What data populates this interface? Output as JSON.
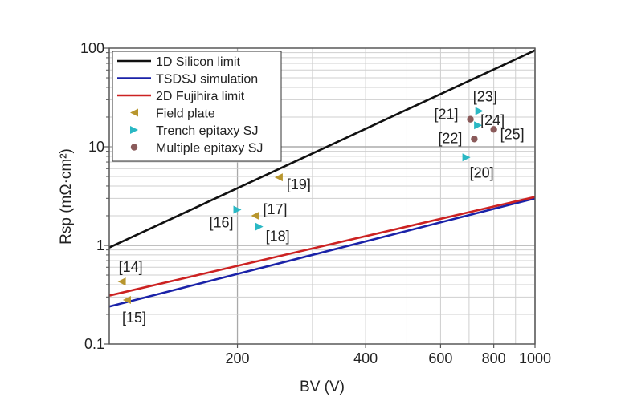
{
  "chart_data": {
    "type": "scatter",
    "title": "",
    "xlabel": "BV (V)",
    "ylabel": "Rsp (mΩ·cm²)",
    "x_scale": "log",
    "y_scale": "log",
    "xlim": [
      100,
      1000
    ],
    "ylim": [
      0.1,
      100
    ],
    "grid": true,
    "legend_position": "top-left",
    "x_ticks": [
      {
        "value": 200,
        "label": "200"
      },
      {
        "value": 400,
        "label": "400"
      },
      {
        "value": 600,
        "label": "600"
      },
      {
        "value": 800,
        "label": "800"
      },
      {
        "value": 1000,
        "label": "1000"
      }
    ],
    "y_ticks": [
      {
        "value": 0.1,
        "label": "0.1"
      },
      {
        "value": 1,
        "label": "1"
      },
      {
        "value": 10,
        "label": "10"
      },
      {
        "value": 100,
        "label": "100"
      }
    ],
    "lines": [
      {
        "name": "1D Silicon limit",
        "color": "#111111",
        "x": [
          100,
          1000
        ],
        "y": [
          0.95,
          95
        ]
      },
      {
        "name": "TSDSJ simulation",
        "color": "#1a22a8",
        "x": [
          100,
          1000
        ],
        "y": [
          0.24,
          3.0
        ]
      },
      {
        "name": "2D Fujihira limit",
        "color": "#cc2222",
        "x": [
          100,
          1000
        ],
        "y": [
          0.31,
          3.1
        ]
      }
    ],
    "markers": [
      {
        "name": "Field plate",
        "color": "#b8962e",
        "shape": "triangle-left",
        "points": [
          {
            "x": 107,
            "y": 0.43,
            "label": "[14]"
          },
          {
            "x": 110,
            "y": 0.28,
            "label": "[15]"
          },
          {
            "x": 220,
            "y": 2.0,
            "label": "[17]"
          },
          {
            "x": 250,
            "y": 4.9,
            "label": "[19]"
          }
        ]
      },
      {
        "name": "Trench epitaxy SJ",
        "color": "#2ab8c4",
        "shape": "triangle-right",
        "points": [
          {
            "x": 200,
            "y": 2.3,
            "label": "[16]"
          },
          {
            "x": 225,
            "y": 1.55,
            "label": "[18]"
          },
          {
            "x": 690,
            "y": 7.8,
            "label": "[20]"
          },
          {
            "x": 735,
            "y": 16.5,
            "label": "[24]"
          },
          {
            "x": 740,
            "y": 23,
            "label": "[23]"
          }
        ]
      },
      {
        "name": "Multiple epitaxy SJ",
        "color": "#8a5a5a",
        "shape": "circle",
        "points": [
          {
            "x": 705,
            "y": 19,
            "label": "[21]"
          },
          {
            "x": 720,
            "y": 12,
            "label": "[22]"
          },
          {
            "x": 800,
            "y": 15,
            "label": "[25]"
          }
        ]
      }
    ]
  }
}
